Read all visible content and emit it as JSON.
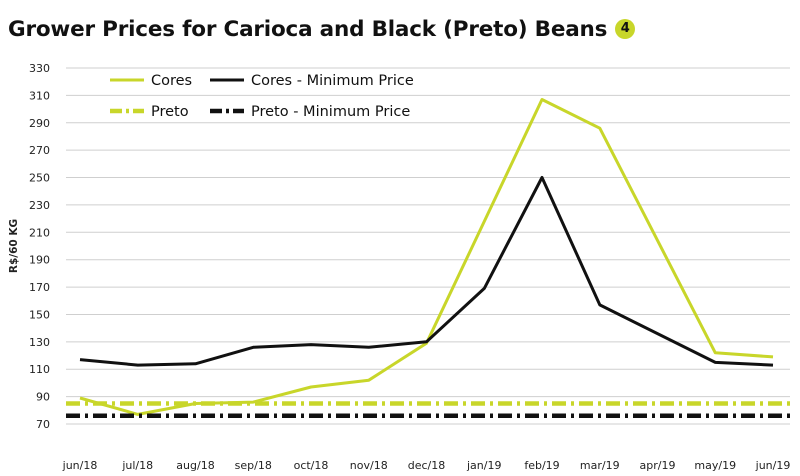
{
  "title": "Grower Prices for Carioca and Black (Preto) Beans",
  "badge": "4",
  "colors": {
    "lime": "#c8d62a",
    "black": "#111111",
    "grid": "#cfcfcf"
  },
  "chart_data": {
    "type": "line",
    "title": "Grower Prices for Carioca and Black (Preto) Beans",
    "ylabel": "R$/60 KG",
    "xlabel": "",
    "ylim": [
      70,
      330
    ],
    "yticks": [
      70,
      90,
      110,
      130,
      150,
      170,
      190,
      210,
      230,
      250,
      270,
      290,
      310,
      330
    ],
    "grid": "horizontal",
    "legend_position": "top-left",
    "categories": [
      "jun/18",
      "jul/18",
      "aug/18",
      "sep/18",
      "oct/18",
      "nov/18",
      "dec/18",
      "jan/19",
      "feb/19",
      "mar/19",
      "apr/19",
      "may/19",
      "jun/19"
    ],
    "series": [
      {
        "name": "Cores",
        "color": "#c8d62a",
        "style": "solid",
        "values": [
          89,
          77,
          85,
          86,
          97,
          102,
          129,
          218,
          307,
          286,
          null,
          122,
          119
        ]
      },
      {
        "name": "Cores - Minimum Price",
        "color": "#111111",
        "style": "solid",
        "values": [
          117,
          113,
          114,
          126,
          128,
          126,
          130,
          169,
          250,
          157,
          null,
          115,
          113
        ]
      },
      {
        "name": "Preto",
        "color": "#c8d62a",
        "style": "dashdot",
        "values": [
          85,
          85,
          85,
          85,
          85,
          85,
          85,
          85,
          85,
          85,
          85,
          85,
          85
        ]
      },
      {
        "name": "Preto - Minimum Price",
        "color": "#111111",
        "style": "dashdot",
        "values": [
          76,
          76,
          76,
          76,
          76,
          76,
          76,
          76,
          76,
          76,
          76,
          76,
          76
        ]
      }
    ]
  }
}
